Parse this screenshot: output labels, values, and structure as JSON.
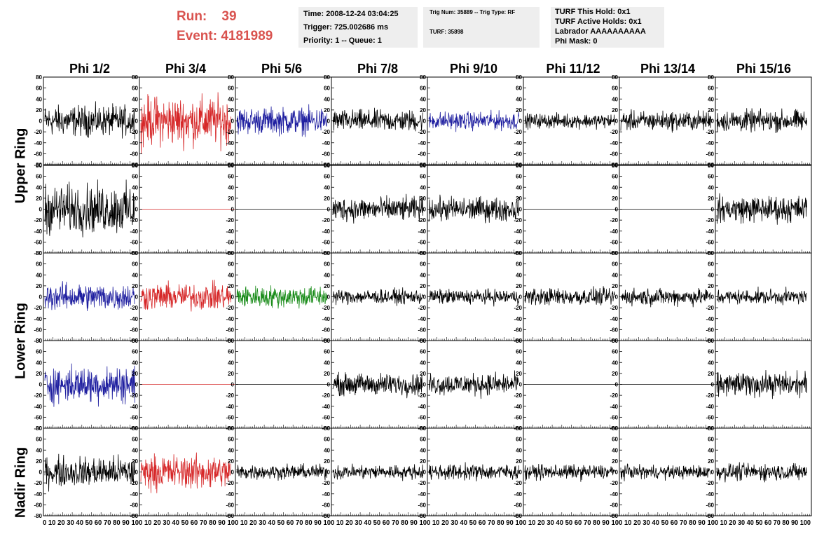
{
  "header": {
    "run_label": "Run:",
    "run_value": "39",
    "event_label": "Event:",
    "event_value": "4181989",
    "info1": [
      "Time: 2008-12-24 03:04:25",
      "Trigger: 725.002686 ms",
      "Priority: 1 -- Queue: 1"
    ],
    "info2": [
      "Trig Num: 35889 -- Trig Type: RF",
      "TURF: 35898"
    ],
    "info3": [
      "TURF This Hold: 0x1",
      "TURF Active Holds: 0x1",
      "Labrador AAAAAAAAAA",
      "Phi Mask: 0"
    ]
  },
  "columns": [
    "Phi 1/2",
    "Phi 3/4",
    "Phi 5/6",
    "Phi 7/8",
    "Phi 9/10",
    "Phi 11/12",
    "Phi 13/14",
    "Phi 15/16"
  ],
  "ring_labels": [
    "Upper Ring",
    "Lower Ring",
    "Nadir Ring"
  ],
  "colors": {
    "black": "#000000",
    "red": "#d62728",
    "blue": "#1f1fa0",
    "green": "#1a8c1a",
    "title_red": "#d9534f",
    "panel_bg": "#eeeeee"
  },
  "chart_data": {
    "type": "line",
    "y_ticks": [
      80,
      60,
      40,
      20,
      0,
      -20,
      -40,
      -60,
      -80
    ],
    "y_tick_labels": [
      "80",
      "60",
      "40",
      "20",
      "0",
      "-20",
      "-40",
      "-60",
      "-80"
    ],
    "x_ticks": [
      0,
      10,
      20,
      30,
      40,
      50,
      60,
      70,
      80,
      90,
      100
    ],
    "x_tick_label_strip": [
      "0 10 20 30 40 50 60 70 80 90 10",
      "0 10 20 30 40 50 60 70 80 90 10",
      "0 10 20 30 40 50 60 70 80 90 10",
      "0 10 20 30 40 50 60 70 80 90 10",
      "0 10 20 30 40 50 60 70 80 90 10",
      "0 10 20 30 40 50 60 70 80 90 10",
      "0 10 20 30 40 50 60 70 80 90 10",
      "0 10 20 30 40 50 60 70 80 90 100"
    ],
    "ylim": [
      -80,
      80
    ],
    "xlim": [
      0,
      100
    ],
    "rows": [
      {
        "ring": "Upper Ring",
        "cells": [
          {
            "color": "black",
            "amp": 25,
            "flat": false
          },
          {
            "color": "red",
            "amp": 40,
            "flat": false
          },
          {
            "color": "blue",
            "amp": 22,
            "flat": false
          },
          {
            "color": "black",
            "amp": 18,
            "flat": false
          },
          {
            "color": "blue",
            "amp": 15,
            "flat": false
          },
          {
            "color": "black",
            "amp": 12,
            "flat": false
          },
          {
            "color": "black",
            "amp": 16,
            "flat": false
          },
          {
            "color": "black",
            "amp": 18,
            "flat": false
          }
        ]
      },
      {
        "ring": "Upper Ring",
        "cells": [
          {
            "color": "black",
            "amp": 40,
            "flat": false
          },
          {
            "color": "red",
            "amp": 0,
            "flat": true
          },
          {
            "color": "black",
            "amp": 0,
            "flat": true
          },
          {
            "color": "black",
            "amp": 20,
            "flat": false
          },
          {
            "color": "black",
            "amp": 20,
            "flat": false
          },
          {
            "color": "black",
            "amp": 0,
            "flat": true
          },
          {
            "color": "black",
            "amp": 0,
            "flat": true
          },
          {
            "color": "black",
            "amp": 22,
            "flat": false
          }
        ]
      },
      {
        "ring": "Lower Ring",
        "cells": [
          {
            "color": "blue",
            "amp": 22,
            "flat": false
          },
          {
            "color": "red",
            "amp": 22,
            "flat": false
          },
          {
            "color": "green",
            "amp": 18,
            "flat": false
          },
          {
            "color": "black",
            "amp": 12,
            "flat": false
          },
          {
            "color": "black",
            "amp": 12,
            "flat": false
          },
          {
            "color": "black",
            "amp": 14,
            "flat": false
          },
          {
            "color": "black",
            "amp": 14,
            "flat": false
          },
          {
            "color": "black",
            "amp": 12,
            "flat": false
          }
        ]
      },
      {
        "ring": "Lower Ring",
        "cells": [
          {
            "color": "blue",
            "amp": 30,
            "flat": false
          },
          {
            "color": "red",
            "amp": 0,
            "flat": true
          },
          {
            "color": "black",
            "amp": 0,
            "flat": true
          },
          {
            "color": "black",
            "amp": 18,
            "flat": false
          },
          {
            "color": "black",
            "amp": 18,
            "flat": false
          },
          {
            "color": "black",
            "amp": 0,
            "flat": true
          },
          {
            "color": "black",
            "amp": 0,
            "flat": true
          },
          {
            "color": "black",
            "amp": 20,
            "flat": false
          }
        ]
      },
      {
        "ring": "Nadir Ring",
        "cells": [
          {
            "color": "black",
            "amp": 25,
            "flat": false
          },
          {
            "color": "red",
            "amp": 28,
            "flat": false
          },
          {
            "color": "black",
            "amp": 12,
            "flat": false
          },
          {
            "color": "black",
            "amp": 12,
            "flat": false
          },
          {
            "color": "black",
            "amp": 13,
            "flat": false
          },
          {
            "color": "black",
            "amp": 12,
            "flat": false
          },
          {
            "color": "black",
            "amp": 11,
            "flat": false
          },
          {
            "color": "black",
            "amp": 14,
            "flat": false
          }
        ]
      }
    ]
  }
}
